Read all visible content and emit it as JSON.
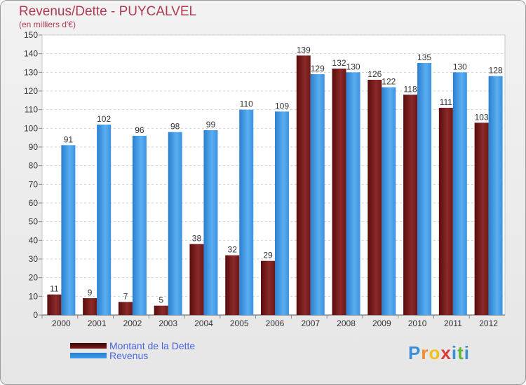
{
  "title": "Revenus/Dette - PUYCALVEL",
  "subtitle": "(en milliers d'€)",
  "logo": {
    "letters": [
      "P",
      "r",
      "o",
      "x",
      "i",
      "t",
      "i"
    ],
    "colors": [
      "#3a8fd6",
      "#f08a2a",
      "#f0c020",
      "#e03a3a",
      "#3a8fd6",
      "#60b83a",
      "#3a8fd6"
    ]
  },
  "chart_data": {
    "type": "bar",
    "title": "Revenus/Dette - PUYCALVEL",
    "ylabel": "(en milliers d'€)",
    "categories": [
      "2000",
      "2001",
      "2002",
      "2003",
      "2004",
      "2005",
      "2006",
      "2007",
      "2008",
      "2009",
      "2010",
      "2011",
      "2012"
    ],
    "ylim": [
      0,
      150
    ],
    "yticks": [
      0,
      10,
      20,
      30,
      40,
      50,
      60,
      70,
      80,
      90,
      100,
      110,
      120,
      130,
      140,
      150
    ],
    "grid": true,
    "legend_position": "bottom-left",
    "series": [
      {
        "name": "Montant de la Dette",
        "color": "#7a1c1c",
        "values": [
          11,
          9,
          7,
          5,
          38,
          32,
          29,
          139,
          132,
          126,
          118,
          111,
          103
        ]
      },
      {
        "name": "Revenus",
        "color": "#3d9be9",
        "values": [
          91,
          102,
          96,
          98,
          99,
          110,
          109,
          129,
          130,
          122,
          135,
          130,
          128
        ]
      }
    ]
  }
}
